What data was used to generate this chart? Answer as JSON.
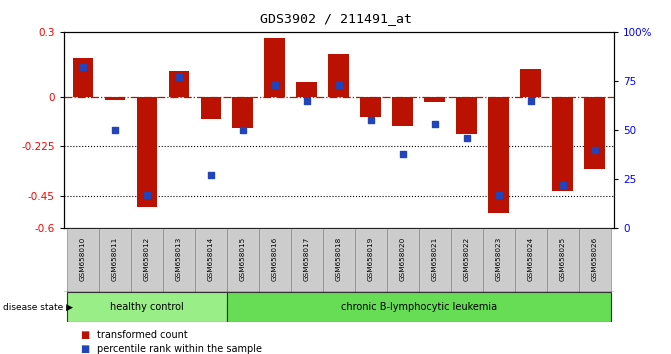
{
  "title": "GDS3902 / 211491_at",
  "samples": [
    "GSM658010",
    "GSM658011",
    "GSM658012",
    "GSM658013",
    "GSM658014",
    "GSM658015",
    "GSM658016",
    "GSM658017",
    "GSM658018",
    "GSM658019",
    "GSM658020",
    "GSM658021",
    "GSM658022",
    "GSM658023",
    "GSM658024",
    "GSM658025",
    "GSM658026"
  ],
  "bar_values": [
    0.18,
    -0.01,
    -0.5,
    0.12,
    -0.1,
    -0.14,
    0.27,
    0.07,
    0.2,
    -0.09,
    -0.13,
    -0.02,
    -0.17,
    -0.53,
    0.13,
    -0.43,
    -0.33
  ],
  "percentile_values": [
    82,
    50,
    17,
    77,
    27,
    50,
    73,
    65,
    73,
    55,
    38,
    53,
    46,
    17,
    65,
    22,
    40
  ],
  "ylim_left": [
    -0.6,
    0.3
  ],
  "ylim_right": [
    0,
    100
  ],
  "left_yticks": [
    -0.6,
    -0.45,
    -0.225,
    0.0,
    0.3
  ],
  "right_yticks": [
    0,
    25,
    50,
    75,
    100
  ],
  "hline_y": 0.0,
  "dotted_lines": [
    -0.225,
    -0.45
  ],
  "bar_color": "#bb1100",
  "blue_color": "#2244bb",
  "healthy_count": 5,
  "leukemia_count": 12,
  "healthy_label": "healthy control",
  "leukemia_label": "chronic B-lymphocytic leukemia",
  "disease_label": "disease state",
  "legend_bar": "transformed count",
  "legend_point": "percentile rank within the sample",
  "healthy_color": "#99ee88",
  "leukemia_color": "#66dd55",
  "label_box_color": "#cccccc",
  "label_box_edge": "#888888",
  "right_label_100": "100%",
  "right_label_75": "75",
  "right_label_50": "50",
  "right_label_25": "25",
  "right_label_0": "0"
}
